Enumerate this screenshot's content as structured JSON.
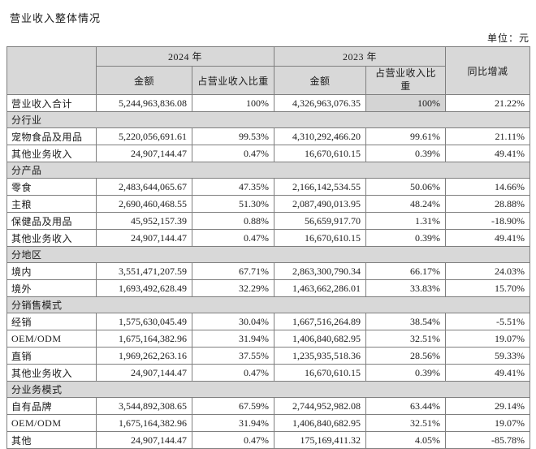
{
  "page": {
    "title": "营业收入整体情况",
    "unit_label": "单位：元"
  },
  "table": {
    "columns": {
      "year_2024": "2024 年",
      "year_2023": "2023 年",
      "amount_2024": "金额",
      "share_2024": "占营业收入比重",
      "amount_2023": "金额",
      "share_2023": "占营业收入比重",
      "yoy": "同比增减"
    },
    "rows": [
      {
        "type": "data",
        "label": "营业收入合计",
        "amount_2024": "5,244,963,836.08",
        "share_2024": "100%",
        "amount_2023": "4,326,963,076.35",
        "share_2023": "100%",
        "yoy": "21.22%",
        "share_2023_shaded": true
      },
      {
        "type": "section",
        "label": "分行业"
      },
      {
        "type": "data",
        "label": "宠物食品及用品",
        "amount_2024": "5,220,056,691.61",
        "share_2024": "99.53%",
        "amount_2023": "4,310,292,466.20",
        "share_2023": "99.61%",
        "yoy": "21.11%"
      },
      {
        "type": "data",
        "label": "其他业务收入",
        "amount_2024": "24,907,144.47",
        "share_2024": "0.47%",
        "amount_2023": "16,670,610.15",
        "share_2023": "0.39%",
        "yoy": "49.41%"
      },
      {
        "type": "section",
        "label": "分产品"
      },
      {
        "type": "data",
        "label": "零食",
        "amount_2024": "2,483,644,065.67",
        "share_2024": "47.35%",
        "amount_2023": "2,166,142,534.55",
        "share_2023": "50.06%",
        "yoy": "14.66%"
      },
      {
        "type": "data",
        "label": "主粮",
        "amount_2024": "2,690,460,468.55",
        "share_2024": "51.30%",
        "amount_2023": "2,087,490,013.95",
        "share_2023": "48.24%",
        "yoy": "28.88%"
      },
      {
        "type": "data",
        "label": "保健品及用品",
        "amount_2024": "45,952,157.39",
        "share_2024": "0.88%",
        "amount_2023": "56,659,917.70",
        "share_2023": "1.31%",
        "yoy": "-18.90%"
      },
      {
        "type": "data",
        "label": "其他业务收入",
        "amount_2024": "24,907,144.47",
        "share_2024": "0.47%",
        "amount_2023": "16,670,610.15",
        "share_2023": "0.39%",
        "yoy": "49.41%"
      },
      {
        "type": "section",
        "label": "分地区"
      },
      {
        "type": "data",
        "label": "境内",
        "amount_2024": "3,551,471,207.59",
        "share_2024": "67.71%",
        "amount_2023": "2,863,300,790.34",
        "share_2023": "66.17%",
        "yoy": "24.03%"
      },
      {
        "type": "data",
        "label": "境外",
        "amount_2024": "1,693,492,628.49",
        "share_2024": "32.29%",
        "amount_2023": "1,463,662,286.01",
        "share_2023": "33.83%",
        "yoy": "15.70%"
      },
      {
        "type": "section",
        "label": "分销售模式"
      },
      {
        "type": "data",
        "label": "经销",
        "amount_2024": "1,575,630,045.49",
        "share_2024": "30.04%",
        "amount_2023": "1,667,516,264.89",
        "share_2023": "38.54%",
        "yoy": "-5.51%"
      },
      {
        "type": "data",
        "label": "OEM/ODM",
        "amount_2024": "1,675,164,382.96",
        "share_2024": "31.94%",
        "amount_2023": "1,406,840,682.95",
        "share_2023": "32.51%",
        "yoy": "19.07%"
      },
      {
        "type": "data",
        "label": "直销",
        "amount_2024": "1,969,262,263.16",
        "share_2024": "37.55%",
        "amount_2023": "1,235,935,518.36",
        "share_2023": "28.56%",
        "yoy": "59.33%"
      },
      {
        "type": "data",
        "label": "其他业务收入",
        "amount_2024": "24,907,144.47",
        "share_2024": "0.47%",
        "amount_2023": "16,670,610.15",
        "share_2023": "0.39%",
        "yoy": "49.41%"
      },
      {
        "type": "section",
        "label": "分业务模式"
      },
      {
        "type": "data",
        "label": "自有品牌",
        "amount_2024": "3,544,892,308.65",
        "share_2024": "67.59%",
        "amount_2023": "2,744,952,982.08",
        "share_2023": "63.44%",
        "yoy": "29.14%"
      },
      {
        "type": "data",
        "label": "OEM/ODM",
        "amount_2024": "1,675,164,382.96",
        "share_2024": "31.94%",
        "amount_2023": "1,406,840,682.95",
        "share_2023": "32.51%",
        "yoy": "19.07%"
      },
      {
        "type": "data",
        "label": "其他",
        "amount_2024": "24,907,144.47",
        "share_2024": "0.47%",
        "amount_2023": "175,169,411.32",
        "share_2023": "4.05%",
        "yoy": "-85.78%"
      }
    ]
  },
  "colors": {
    "header_bg": "#d8d8d8",
    "section_bg": "#d8d8d8",
    "shaded_cell_bg": "#d4d4d4",
    "border": "#7f7f7f",
    "text": "#1b1b1b"
  }
}
